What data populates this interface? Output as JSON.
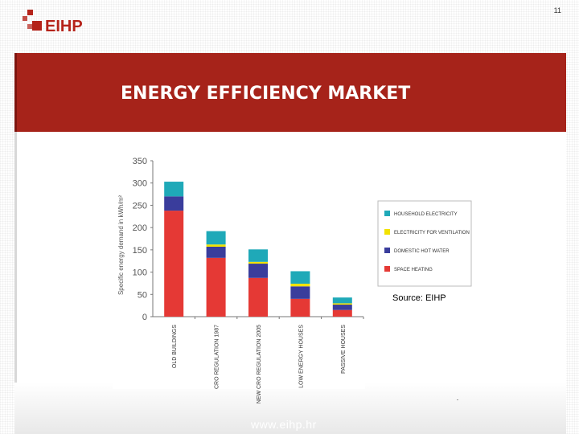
{
  "slide": {
    "page_number": "11",
    "logo_text": "EIHP",
    "title": "ENERGY EFFICIENCY MARKET",
    "source": "Source: EIHP",
    "footer_url": "www.eihp.hr"
  },
  "colors": {
    "brand_red": "#a6231a",
    "space_heating": "#e53935",
    "domestic_hot_water": "#3a3d9c",
    "electricity_ventilation": "#f2e200",
    "household_electricity": "#1fa9b8"
  },
  "chart_data": {
    "type": "bar",
    "stacked": true,
    "ylabel": "Specific energy demand in kWh/m²",
    "ylim": [
      0,
      350
    ],
    "yticks": [
      0,
      50,
      100,
      150,
      200,
      250,
      300,
      350
    ],
    "categories": [
      "OLD BUILDINGS",
      "CRO REGULATION 1987",
      "NEW CRO REGULATION 2005",
      "LOW ENERGY HOUSES",
      "PASSIVE HOUSES"
    ],
    "series": [
      {
        "name": "SPACE HEATING",
        "color": "#e53935",
        "values": [
          238,
          132,
          87,
          40,
          15
        ]
      },
      {
        "name": "DOMESTIC HOT WATER",
        "color": "#3a3d9c",
        "values": [
          32,
          25,
          32,
          28,
          12
        ]
      },
      {
        "name": "ELECTRICITY FOR VENTILATION",
        "color": "#f2e200",
        "values": [
          0,
          5,
          4,
          6,
          3
        ]
      },
      {
        "name": "HOUSEHOLD ELECTRICITY",
        "color": "#1fa9b8",
        "values": [
          33,
          30,
          28,
          28,
          13
        ]
      }
    ],
    "legend": {
      "placement": "right",
      "entries": [
        "HOUSEHOLD ELECTRICITY",
        "ELECTRICITY FOR VENTILATION",
        "DOMESTIC HOT WATER",
        "SPACE HEATING"
      ]
    },
    "grid": false
  }
}
